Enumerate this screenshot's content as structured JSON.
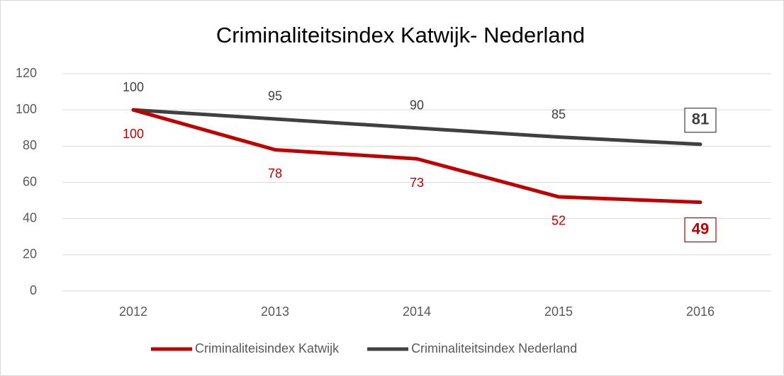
{
  "chart_data": {
    "type": "line",
    "title": "Criminaliteitsindex Katwijk- Nederland",
    "categories": [
      "2012",
      "2013",
      "2014",
      "2015",
      "2016"
    ],
    "series": [
      {
        "name": "Criminaliteisindex Katwijk",
        "color": "#c00000",
        "values": [
          100,
          78,
          73,
          52,
          49
        ]
      },
      {
        "name": "Criminaliteitsindex Nederland",
        "color": "#404040",
        "values": [
          100,
          95,
          90,
          85,
          81
        ]
      }
    ],
    "ylim": [
      0,
      120
    ],
    "yticks": [
      0,
      20,
      40,
      60,
      80,
      100,
      120
    ],
    "grid": true,
    "legend": "bottom"
  }
}
